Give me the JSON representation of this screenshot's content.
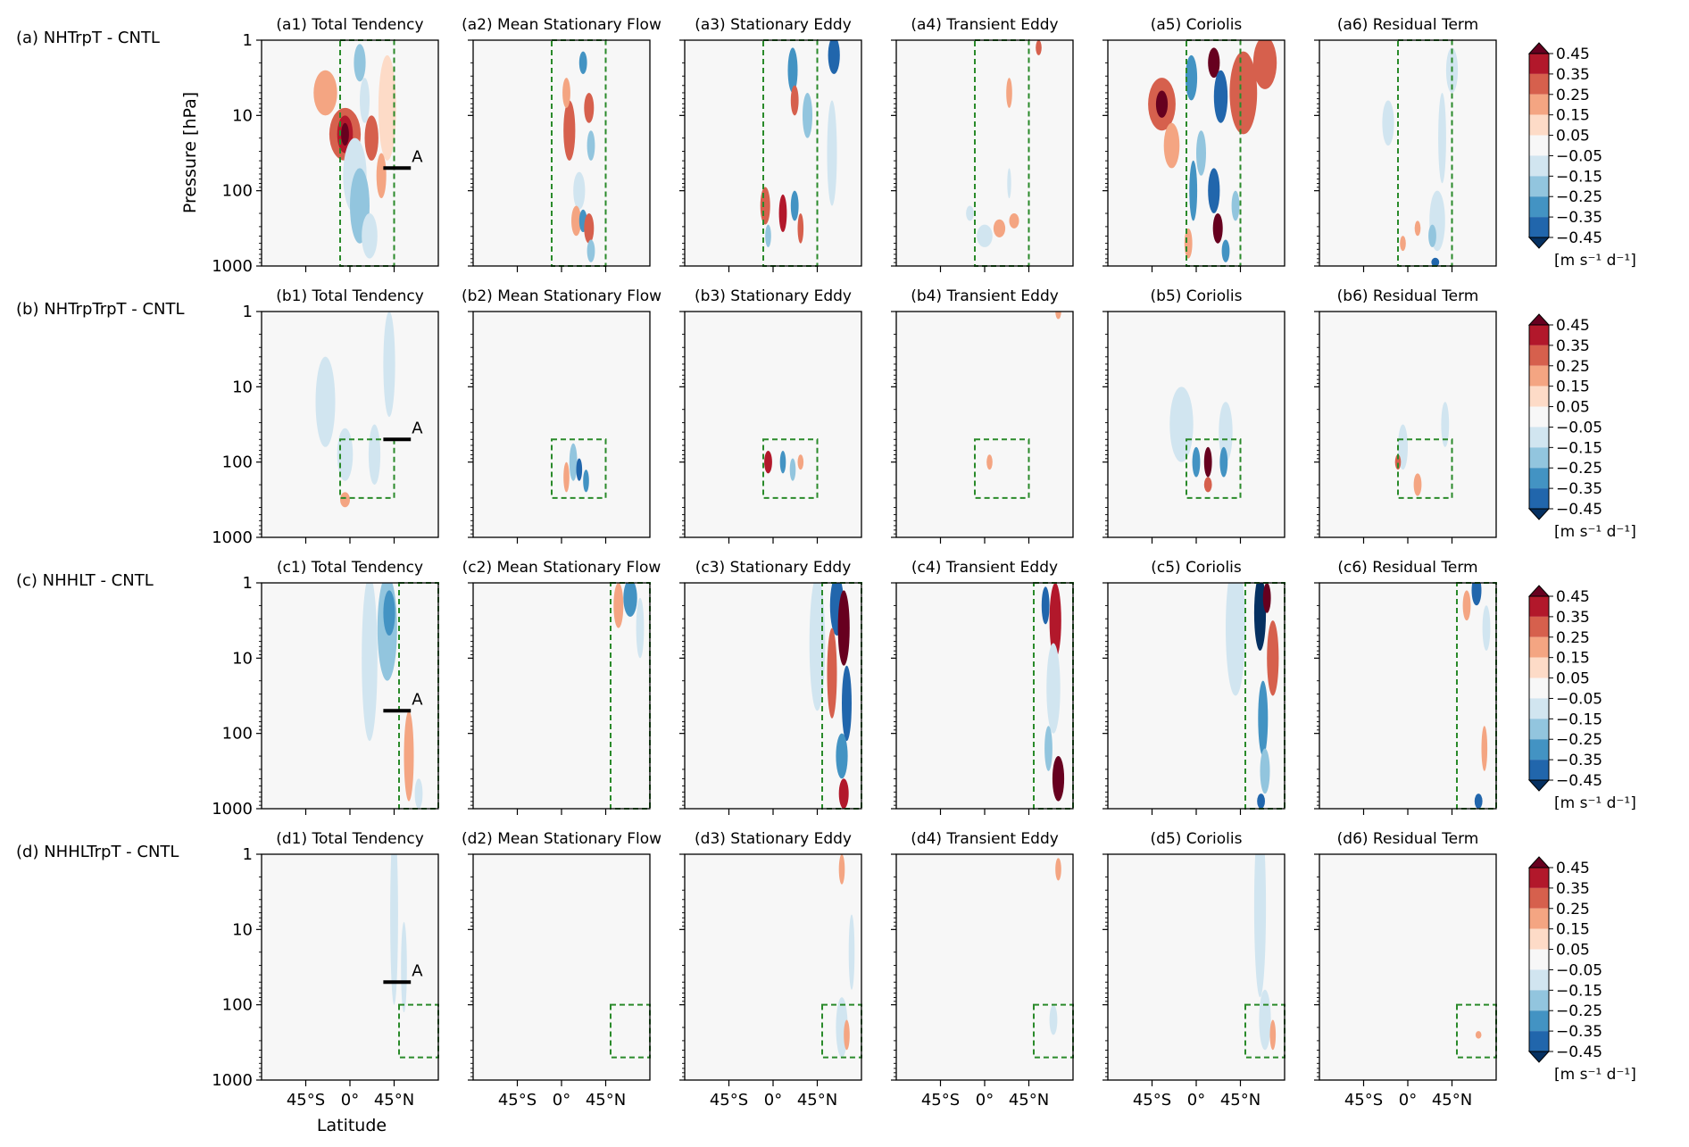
{
  "figure": {
    "xlabel": "Latitude",
    "ylabel": "Pressure [hPa]",
    "colorbar_unit": "[m s⁻¹ d⁻¹]",
    "colorbar_levels": [
      "0.45",
      "0.35",
      "0.25",
      "0.15",
      "0.05",
      "−0.05",
      "−0.15",
      "−0.25",
      "−0.35",
      "−0.45"
    ],
    "colorbar_colors": [
      "#67001f",
      "#b2182b",
      "#d6604d",
      "#f4a582",
      "#fddbc7",
      "#f7f7f7",
      "#d1e5f0",
      "#92c5de",
      "#4393c3",
      "#2166ac",
      "#053061"
    ],
    "background_color": "#f7f7f7",
    "box_color": "#2a8a2a",
    "y_ticks": [
      "1",
      "10",
      "100",
      "1000"
    ],
    "x_ticks": [
      "45°S",
      "0°",
      "45°N"
    ],
    "marker_label": "A"
  },
  "chart_data": {
    "type": "heatmap",
    "y_scale": "log",
    "ylim": [
      1000,
      1
    ],
    "xlim": [
      -90,
      90
    ],
    "rows": [
      {
        "label": "(a) NHTrpT - CNTL",
        "marker_pressure_hpa": 50,
        "box": {
          "lat": [
            -10,
            45
          ],
          "p": [
            1,
            1000
          ]
        },
        "panels": [
          "(a1) Total Tendency",
          "(a2) Mean Stationary Flow",
          "(a3) Stationary Eddy",
          "(a4) Transient Eddy",
          "(a5) Coriolis",
          "(a6) Residual Term"
        ]
      },
      {
        "label": "(b) NHTrpTrpT - CNTL",
        "marker_pressure_hpa": 50,
        "box": {
          "lat": [
            -10,
            45
          ],
          "p": [
            50,
            300
          ]
        },
        "panels": [
          "(b1) Total Tendency",
          "(b2) Mean Stationary Flow",
          "(b3) Stationary Eddy",
          "(b4) Transient Eddy",
          "(b5) Coriolis",
          "(b6) Residual Term"
        ]
      },
      {
        "label": "(c) NHHLT - CNTL",
        "marker_pressure_hpa": 50,
        "box": {
          "lat": [
            50,
            90
          ],
          "p": [
            1,
            1000
          ]
        },
        "panels": [
          "(c1) Total Tendency",
          "(c2) Mean Stationary Flow",
          "(c3) Stationary Eddy",
          "(c4) Transient Eddy",
          "(c5) Coriolis",
          "(c6) Residual Term"
        ]
      },
      {
        "label": "(d) NHHLTrpT - CNTL",
        "marker_pressure_hpa": 50,
        "box": {
          "lat": [
            50,
            90
          ],
          "p": [
            100,
            500
          ]
        },
        "panels": [
          "(d1) Total Tendency",
          "(d2) Mean Stationary Flow",
          "(d3) Stationary Eddy",
          "(d4) Transient Eddy",
          "(d5) Coriolis",
          "(d6) Residual Term"
        ]
      }
    ]
  }
}
